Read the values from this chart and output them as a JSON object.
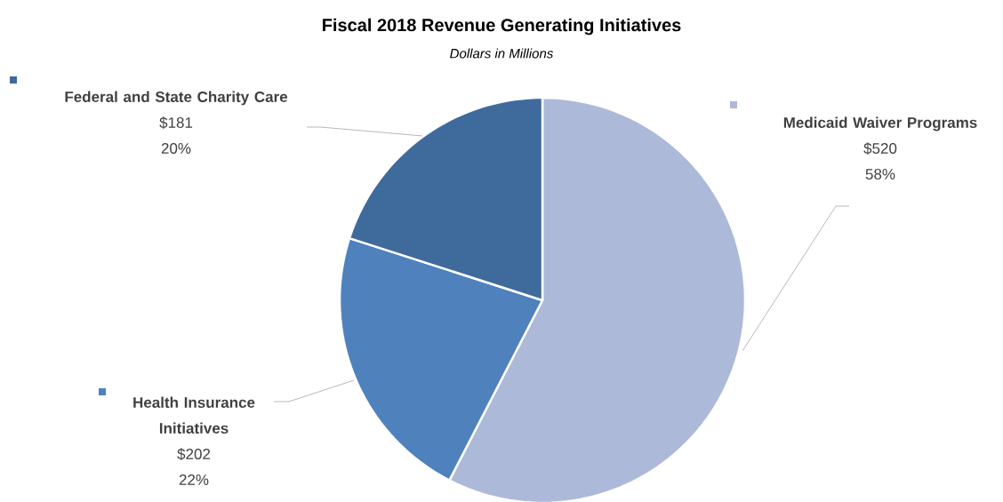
{
  "chart_data": {
    "type": "pie",
    "title": "Fiscal 2018 Revenue Generating Initiatives",
    "subtitle": "Dollars in Millions",
    "categories": [
      "Medicaid Waiver Programs",
      "Health Insurance Initiatives",
      "Federal and State Charity Care"
    ],
    "values": [
      520,
      202,
      181
    ],
    "colors": [
      "#adb9d8",
      "#4f81bd",
      "#3f6a9c"
    ],
    "value_labels": [
      "$520",
      "$202",
      "$181"
    ],
    "annotations": [
      "58%",
      "22%",
      "20%"
    ]
  }
}
